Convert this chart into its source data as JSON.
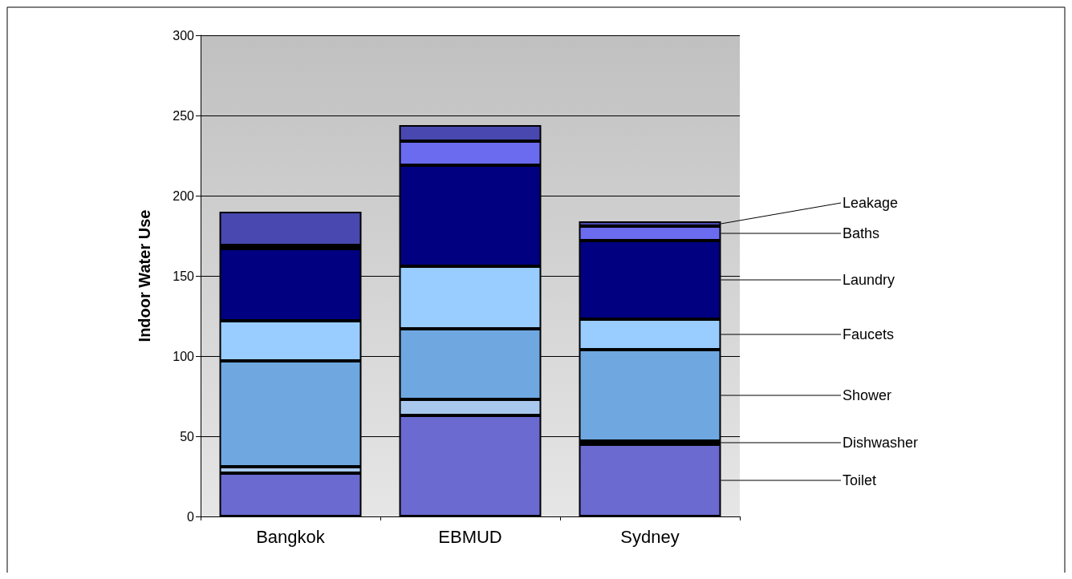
{
  "chart_data": {
    "type": "bar",
    "stacked": true,
    "ylabel": "Indoor Water Use",
    "categories": [
      "Bangkok",
      "EBMUD",
      "Sydney"
    ],
    "series": [
      {
        "name": "Toilet",
        "color": "#6a6ad0",
        "values": [
          27,
          63,
          45
        ]
      },
      {
        "name": "Dishwasher",
        "color": "#a9c8ee",
        "values": [
          4,
          10,
          2
        ]
      },
      {
        "name": "Shower",
        "color": "#6fa8e0",
        "values": [
          66,
          44,
          57
        ]
      },
      {
        "name": "Faucets",
        "color": "#99ccff",
        "values": [
          25,
          39,
          19
        ]
      },
      {
        "name": "Laundry",
        "color": "#000080",
        "values": [
          45,
          63,
          49
        ]
      },
      {
        "name": "Baths",
        "color": "#6b6bf0",
        "values": [
          2,
          15,
          9
        ]
      },
      {
        "name": "Leakage",
        "color": "#4848b0",
        "values": [
          21,
          10,
          3
        ]
      }
    ],
    "ylim": [
      0,
      300
    ],
    "yticks": [
      0,
      50,
      100,
      150,
      200,
      250,
      300
    ],
    "grid": "y"
  }
}
